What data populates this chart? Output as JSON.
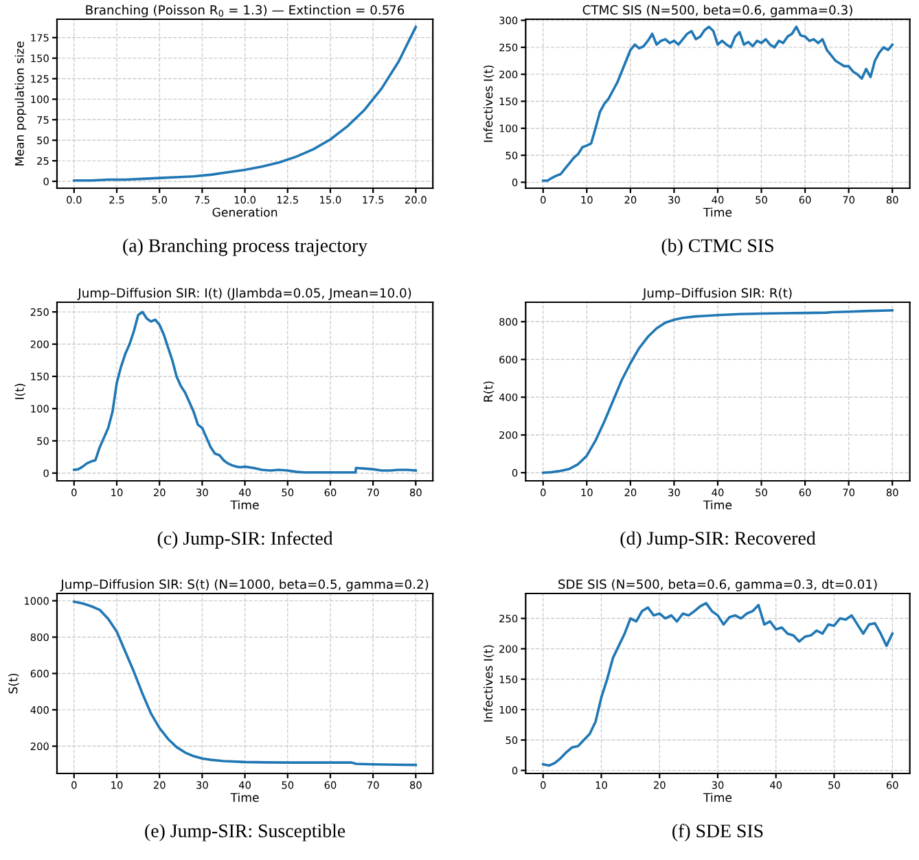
{
  "chart_data": [
    {
      "type": "line",
      "title": "Branching (Poisson R$_{0}$ = 1.3) — Extinction = 0.576",
      "xlabel": "Generation",
      "ylabel": "Mean population size",
      "color": "#1f77b4",
      "grid": true,
      "x": [
        0,
        1,
        2,
        3,
        4,
        5,
        6,
        7,
        8,
        9,
        10,
        11,
        12,
        13,
        14,
        15,
        16,
        17,
        18,
        19,
        20
      ],
      "values": [
        1,
        1,
        2,
        2,
        3,
        4,
        5,
        6,
        8,
        11,
        14,
        18,
        23,
        30,
        39,
        51,
        67,
        87,
        113,
        146,
        188
      ],
      "xlim": [
        -1,
        21
      ],
      "ylim": [
        -8.4,
        197.4
      ],
      "xticks": [
        {
          "value": 0,
          "label": "0.0"
        },
        2.5,
        {
          "value": 5,
          "label": "5.0"
        },
        7.5,
        {
          "value": 10,
          "label": "10.0"
        },
        12.5,
        {
          "value": 15,
          "label": "15.0"
        },
        17.5,
        {
          "value": 20,
          "label": "20.0"
        }
      ],
      "yticks": [
        0,
        25,
        50,
        75,
        100,
        125,
        150,
        175
      ],
      "annotations": [
        "(a) Branching process trajectory"
      ]
    },
    {
      "type": "line",
      "title": "CTMC SIS (N=500, beta=0.6, gamma=0.3)",
      "xlabel": "Time",
      "ylabel": "Infectives I(t)",
      "color": "#1f77b4",
      "grid": true,
      "x": [
        0,
        1,
        2,
        3,
        4,
        5,
        6,
        7,
        8,
        9,
        10,
        11,
        12,
        13,
        14,
        15,
        16,
        17,
        18,
        19,
        20,
        21,
        22,
        23,
        24,
        25,
        26,
        27,
        28,
        29,
        30,
        31,
        32,
        33,
        34,
        35,
        36,
        37,
        38,
        39,
        40,
        41,
        42,
        43,
        44,
        45,
        46,
        47,
        48,
        49,
        50,
        51,
        52,
        53,
        54,
        55,
        56,
        57,
        58,
        59,
        60,
        61,
        62,
        63,
        64,
        65,
        66,
        67,
        68,
        69,
        70,
        71,
        72,
        73,
        74,
        75,
        76,
        77,
        78,
        79,
        80
      ],
      "values": [
        3,
        3,
        8,
        12,
        15,
        25,
        35,
        45,
        52,
        65,
        68,
        72,
        100,
        130,
        145,
        155,
        170,
        185,
        205,
        225,
        245,
        255,
        248,
        252,
        262,
        275,
        255,
        262,
        265,
        258,
        262,
        255,
        265,
        275,
        280,
        265,
        270,
        282,
        288,
        280,
        255,
        262,
        255,
        250,
        270,
        278,
        255,
        260,
        252,
        262,
        258,
        265,
        255,
        250,
        262,
        258,
        270,
        275,
        288,
        272,
        270,
        262,
        265,
        258,
        265,
        245,
        235,
        225,
        220,
        215,
        215,
        205,
        200,
        192,
        210,
        195,
        225,
        240,
        250,
        245,
        255
      ],
      "xlim": [
        -4,
        84
      ],
      "ylim": [
        -11,
        302
      ],
      "xticks": [
        0,
        10,
        20,
        30,
        40,
        50,
        60,
        70,
        80
      ],
      "yticks": [
        0,
        50,
        100,
        150,
        200,
        250,
        300
      ],
      "annotations": [
        "(b) CTMC SIS"
      ]
    },
    {
      "type": "line",
      "title": "Jump–Diffusion SIR: I(t) (Jlambda=0.05, Jmean=10.0)",
      "xlabel": "Time",
      "ylabel": "I(t)",
      "color": "#1f77b4",
      "grid": true,
      "x": [
        0,
        1,
        2,
        3,
        4,
        5,
        6,
        7,
        8,
        9,
        10,
        11,
        12,
        13,
        14,
        15,
        16,
        17,
        18,
        19,
        20,
        21,
        22,
        23,
        24,
        25,
        26,
        27,
        28,
        29,
        30,
        31,
        32,
        33,
        34,
        35,
        36,
        37,
        38,
        39,
        40,
        42,
        44,
        46,
        48,
        50,
        52,
        54,
        56,
        58,
        60,
        62,
        64,
        65.9,
        66,
        68,
        70,
        72,
        74,
        76,
        78,
        80
      ],
      "values": [
        5,
        6,
        10,
        15,
        18,
        20,
        40,
        55,
        70,
        95,
        140,
        165,
        185,
        200,
        220,
        245,
        250,
        240,
        235,
        238,
        230,
        215,
        195,
        175,
        150,
        135,
        125,
        110,
        95,
        75,
        70,
        55,
        40,
        30,
        28,
        20,
        15,
        12,
        10,
        9,
        10,
        8,
        5,
        4,
        5,
        4,
        2,
        1,
        1,
        1,
        1,
        1,
        1,
        1,
        8,
        7,
        6,
        4,
        4,
        5,
        5,
        4
      ],
      "xlim": [
        -4,
        84
      ],
      "ylim": [
        -12,
        265
      ],
      "xticks": [
        0,
        10,
        20,
        30,
        40,
        50,
        60,
        70,
        80
      ],
      "yticks": [
        0,
        50,
        100,
        150,
        200,
        250
      ],
      "annotations": [
        "(c) Jump-SIR: Infected"
      ]
    },
    {
      "type": "line",
      "title": "Jump–Diffusion SIR: R(t)",
      "xlabel": "Time",
      "ylabel": "R(t)",
      "color": "#1f77b4",
      "grid": true,
      "x": [
        0,
        2,
        4,
        6,
        8,
        10,
        12,
        14,
        16,
        18,
        20,
        22,
        24,
        26,
        28,
        30,
        32,
        35,
        40,
        45,
        50,
        55,
        60,
        65,
        66,
        70,
        75,
        80
      ],
      "values": [
        0,
        3,
        10,
        20,
        45,
        90,
        170,
        270,
        380,
        490,
        580,
        660,
        720,
        765,
        795,
        810,
        820,
        828,
        835,
        840,
        843,
        845,
        846,
        848,
        850,
        853,
        857,
        860
      ],
      "xlim": [
        -4,
        84
      ],
      "ylim": [
        -43,
        903
      ],
      "xticks": [
        0,
        10,
        20,
        30,
        40,
        50,
        60,
        70,
        80
      ],
      "yticks": [
        0,
        200,
        400,
        600,
        800
      ],
      "annotations": [
        "(d) Jump-SIR: Recovered"
      ]
    },
    {
      "type": "line",
      "title": "Jump–Diffusion SIR: S(t) (N=1000, beta=0.5, gamma=0.2)",
      "xlabel": "Time",
      "ylabel": "S(t)",
      "color": "#1f77b4",
      "grid": true,
      "x": [
        0,
        2,
        4,
        6,
        8,
        10,
        12,
        14,
        16,
        18,
        20,
        22,
        24,
        26,
        28,
        30,
        32,
        35,
        40,
        45,
        50,
        55,
        60,
        65,
        66,
        70,
        75,
        80
      ],
      "values": [
        995,
        985,
        970,
        950,
        900,
        830,
        720,
        610,
        490,
        380,
        300,
        240,
        195,
        165,
        145,
        132,
        125,
        118,
        113,
        111,
        110,
        110,
        110,
        110,
        103,
        100,
        98,
        97
      ],
      "xlim": [
        -4,
        84
      ],
      "ylim": [
        50,
        1040
      ],
      "xticks": [
        0,
        10,
        20,
        30,
        40,
        50,
        60,
        70,
        80
      ],
      "yticks": [
        200,
        400,
        600,
        800,
        1000
      ],
      "annotations": [
        "(e) Jump-SIR: Susceptible"
      ]
    },
    {
      "type": "line",
      "title": "SDE SIS (N=500, beta=0.6, gamma=0.3, dt=0.01)",
      "xlabel": "Time",
      "ylabel": "Infectives I(t)",
      "color": "#1f77b4",
      "grid": true,
      "x": [
        0,
        1,
        2,
        3,
        4,
        5,
        6,
        7,
        8,
        9,
        10,
        11,
        12,
        13,
        14,
        15,
        16,
        17,
        18,
        19,
        20,
        21,
        22,
        23,
        24,
        25,
        26,
        27,
        28,
        29,
        30,
        31,
        32,
        33,
        34,
        35,
        36,
        37,
        38,
        39,
        40,
        41,
        42,
        43,
        44,
        45,
        46,
        47,
        48,
        49,
        50,
        51,
        52,
        53,
        54,
        55,
        56,
        57,
        58,
        59,
        60
      ],
      "values": [
        10,
        8,
        12,
        20,
        30,
        38,
        40,
        50,
        60,
        80,
        120,
        150,
        185,
        205,
        225,
        250,
        245,
        262,
        268,
        255,
        258,
        250,
        255,
        245,
        258,
        255,
        262,
        270,
        275,
        262,
        255,
        240,
        252,
        255,
        250,
        258,
        262,
        272,
        240,
        245,
        232,
        235,
        225,
        222,
        212,
        220,
        222,
        230,
        225,
        240,
        238,
        250,
        248,
        255,
        240,
        225,
        240,
        242,
        225,
        205,
        225
      ],
      "xlim": [
        -3,
        63
      ],
      "ylim": [
        -5,
        291
      ],
      "xticks": [
        0,
        10,
        20,
        30,
        40,
        50,
        60
      ],
      "yticks": [
        0,
        50,
        100,
        150,
        200,
        250
      ],
      "annotations": [
        "(f) SDE SIS"
      ]
    }
  ]
}
